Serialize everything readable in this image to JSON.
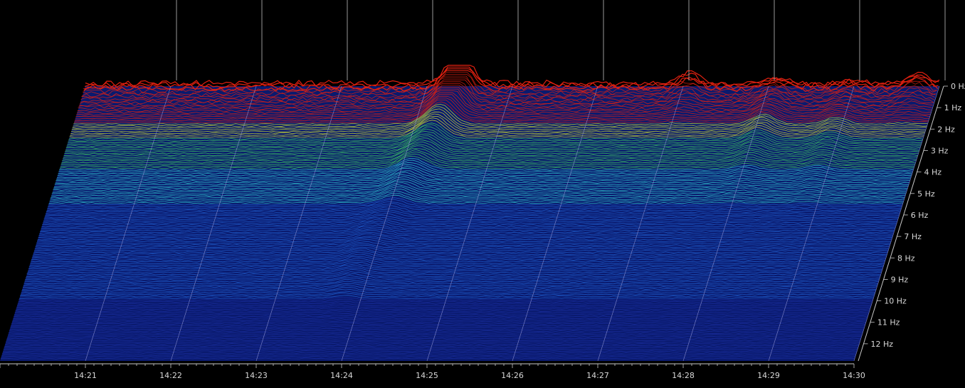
{
  "chart_data": {
    "type": "waterfall",
    "title": "",
    "x_tick_labels": [
      "14:21",
      "14:22",
      "14:23",
      "14:24",
      "14:25",
      "14:26",
      "14:27",
      "14:28",
      "14:29",
      "14:30"
    ],
    "y_tick_labels": [
      "0 Hz",
      "1 Hz",
      "2 Hz",
      "3 Hz",
      "4 Hz",
      "5 Hz",
      "6 Hz",
      "7 Hz",
      "8 Hz",
      "9 Hz",
      "10 Hz",
      "11 Hz",
      "12 Hz"
    ],
    "x_range": [
      "14:20",
      "14:30"
    ],
    "y_range_hz": [
      0,
      12.8
    ],
    "features": [
      {
        "time": "14:24:25",
        "freq_hz": 0.3,
        "amplitude": 1.0
      },
      {
        "time": "14:24:18",
        "freq_hz": 1.2,
        "amplitude": 0.8
      },
      {
        "time": "14:24:05",
        "freq_hz": 4.0,
        "amplitude": 0.45
      },
      {
        "time": "14:23:50",
        "freq_hz": 8.0,
        "amplitude": 0.25
      },
      {
        "time": "14:28:05",
        "freq_hz": 1.7,
        "amplitude": 0.5
      },
      {
        "time": "14:28:55",
        "freq_hz": 2.2,
        "amplitude": 0.35
      },
      {
        "time": "14:27:05",
        "freq_hz": 0.0,
        "amplitude": 0.5
      },
      {
        "time": "14:29:45",
        "freq_hz": 0.0,
        "amplitude": 0.55
      }
    ],
    "grid": true,
    "colors": {
      "low": "#1a2fa0",
      "mid": "#30c8d0",
      "high": "#d0e030",
      "peak": "#e02010",
      "background": "#000000",
      "axis": "#c8c8c8"
    }
  }
}
